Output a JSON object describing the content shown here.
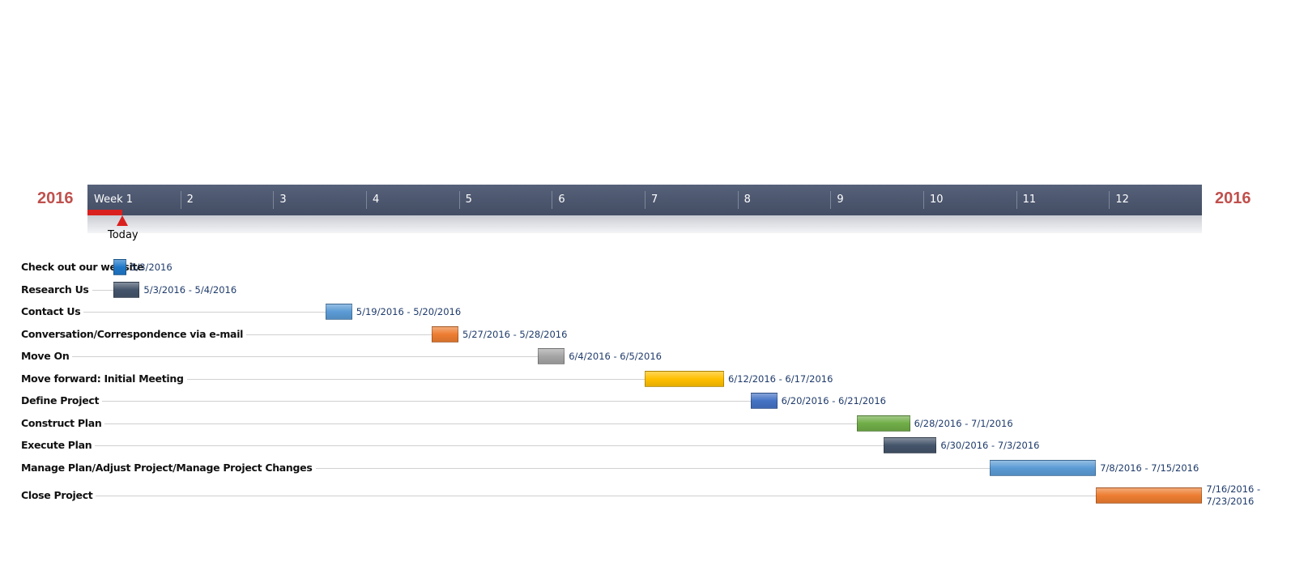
{
  "chart_data": {
    "type": "gantt",
    "years": [
      "2016",
      "2016"
    ],
    "weeks": [
      "Week 1",
      "2",
      "3",
      "4",
      "5",
      "6",
      "7",
      "8",
      "9",
      "10",
      "11",
      "12"
    ],
    "today_label": "Today",
    "tasks": [
      {
        "name": "Check out our website",
        "dates": "5/3/2016",
        "color": "#1f78c8"
      },
      {
        "name": "Research Us",
        "dates": "5/3/2016 - 5/4/2016",
        "color": "#44546a"
      },
      {
        "name": "Contact Us",
        "dates": "5/19/2016 - 5/20/2016",
        "color": "#5b9bd5"
      },
      {
        "name": "Conversation/Correspondence via e-mail",
        "dates": "5/27/2016 - 5/28/2016",
        "color": "#ed7d31"
      },
      {
        "name": "Move On",
        "dates": "6/4/2016 - 6/5/2016",
        "color": "#a5a5a5"
      },
      {
        "name": "Move forward: Initial Meeting",
        "dates": "6/12/2016 - 6/17/2016",
        "color": "#ffc000"
      },
      {
        "name": "Define Project",
        "dates": "6/20/2016 - 6/21/2016",
        "color": "#4472c4"
      },
      {
        "name": "Construct Plan",
        "dates": "6/28/2016 - 7/1/2016",
        "color": "#70ad47"
      },
      {
        "name": "Execute Plan",
        "dates": "6/30/2016 - 7/3/2016",
        "color": "#44546a"
      },
      {
        "name": "Manage Plan/Adjust Project/Manage Project Changes",
        "dates": "7/8/2016 - 7/15/2016",
        "color": "#5b9bd5"
      },
      {
        "name": "Close Project",
        "dates": "7/16/2016 - 7/23/2016",
        "color": "#ed7d31"
      }
    ]
  }
}
